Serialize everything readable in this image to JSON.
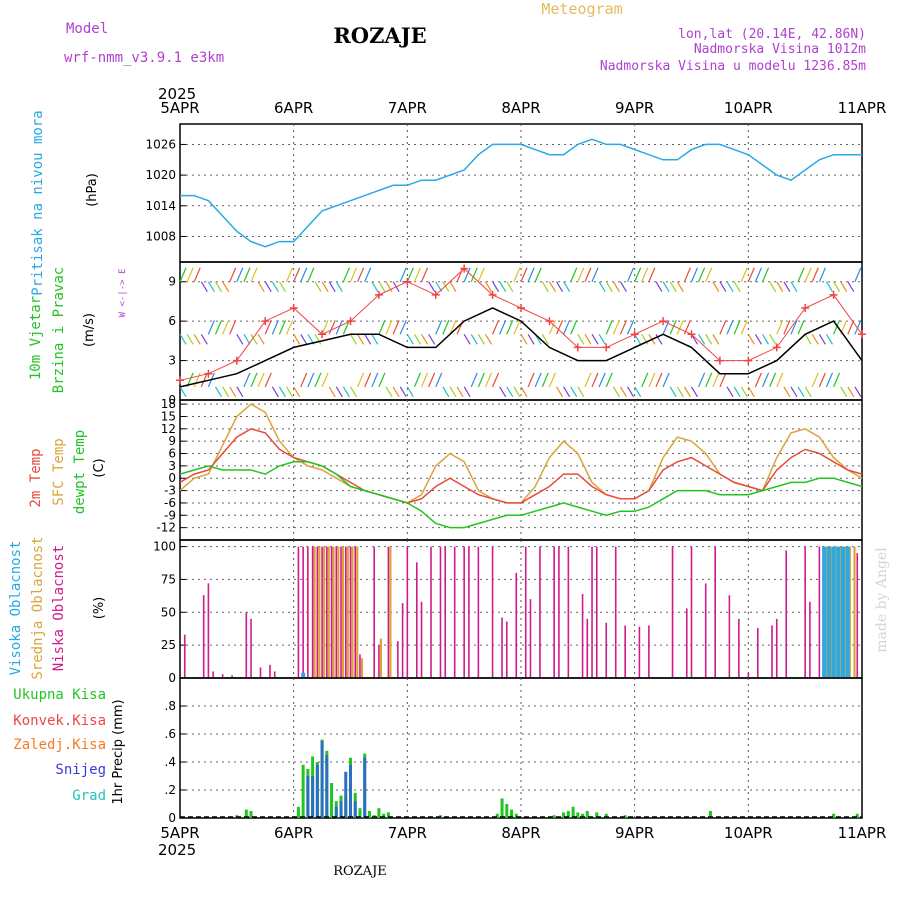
{
  "header": {
    "model_label": "Model",
    "model_name": "wrf-nmm_v3.9.1  e3km",
    "station_title": "ROZAJE",
    "product": "Meteogram",
    "lonlat": "lon,lat (20.14E, 42.86N)",
    "elevation": "Nadmorska Visina 1012m",
    "model_elevation": "Nadmorska Visina u modelu 1236.85m",
    "watermark": "made by Angel",
    "bottom_station": "ROZAJE"
  },
  "time_axis": {
    "year": "2025",
    "labels": [
      "5APR",
      "6APR",
      "7APR",
      "8APR",
      "9APR",
      "10APR",
      "11APR"
    ]
  },
  "colors": {
    "pressure": "#29a9e6",
    "temp2m": "#e84b3c",
    "sfc": "#dba43a",
    "dewpt": "#22c422",
    "wind_line": "#000000",
    "gust_marker": "#f04545",
    "cloud_high": "#29a9e6",
    "cloud_mid": "#dba43a",
    "cloud_low": "#d01a8e",
    "precip_total": "#22c422",
    "precip_conv": "#f04545",
    "precip_frozen": "#f37d23",
    "snow": "#3a3ad8",
    "graupel": "#22c4b8",
    "purple": "#b040d0",
    "orange": "#e8b860"
  },
  "chart_data": [
    {
      "id": "pressure",
      "type": "line",
      "ylabel": "Pritisak na nivou mora",
      "unit": "(hPa)",
      "ylim": [
        1003,
        1030
      ],
      "yticks": [
        1008,
        1014,
        1020,
        1026
      ],
      "x": [
        0,
        3,
        6,
        9,
        12,
        15,
        18,
        21,
        24,
        27,
        30,
        33,
        36,
        39,
        42,
        45,
        48,
        51,
        54,
        57,
        60,
        63,
        66,
        69,
        72,
        75,
        78,
        81,
        84,
        87,
        90,
        93,
        96,
        99,
        102,
        105,
        108,
        111,
        114,
        117,
        120,
        123,
        126,
        129,
        132,
        135,
        138,
        141,
        144
      ],
      "series": [
        {
          "name": "MSLP",
          "values": [
            1016,
            1016,
            1015,
            1012,
            1009,
            1007,
            1006,
            1007,
            1007,
            1010,
            1013,
            1014,
            1015,
            1016,
            1017,
            1018,
            1018,
            1019,
            1019,
            1020,
            1021,
            1024,
            1026,
            1026,
            1026,
            1025,
            1024,
            1024,
            1026,
            1027,
            1026,
            1026,
            1025,
            1024,
            1023,
            1023,
            1025,
            1026,
            1026,
            1025,
            1024,
            1022,
            1020,
            1019,
            1021,
            1023,
            1024,
            1024,
            1024
          ]
        }
      ]
    },
    {
      "id": "wind",
      "type": "line",
      "ylabel": "10m Vjetar Brzina i Pravac",
      "unit": "(m/s)",
      "direction_legend": "W <-|-> E",
      "ylim": [
        0,
        10.5
      ],
      "yticks": [
        0,
        3,
        6,
        9
      ],
      "x": [
        0,
        6,
        12,
        18,
        24,
        30,
        36,
        42,
        48,
        54,
        60,
        66,
        72,
        78,
        84,
        90,
        96,
        102,
        108,
        114,
        120,
        126,
        132,
        138,
        144
      ],
      "series": [
        {
          "name": "wind speed",
          "values": [
            1,
            1.5,
            2,
            3,
            4,
            4.5,
            5,
            5,
            4,
            4,
            6,
            7,
            6,
            4,
            3,
            3,
            4,
            5,
            4,
            2,
            2,
            3,
            5,
            6,
            3
          ]
        },
        {
          "name": "gust",
          "values": [
            1.5,
            2,
            3,
            6,
            7,
            5,
            6,
            8,
            9,
            8,
            10,
            8,
            7,
            6,
            4,
            4,
            5,
            6,
            5,
            3,
            3,
            4,
            7,
            8,
            5
          ]
        }
      ]
    },
    {
      "id": "temperature",
      "type": "line",
      "ylabel": "2m Temp / SFC Temp / dewpt Temp",
      "unit": "(C)",
      "ylim": [
        -15,
        19
      ],
      "yticks": [
        -12,
        -9,
        -6,
        -3,
        0,
        3,
        6,
        9,
        12,
        15,
        18
      ],
      "x": [
        0,
        3,
        6,
        9,
        12,
        15,
        18,
        21,
        24,
        27,
        30,
        33,
        36,
        39,
        42,
        45,
        48,
        51,
        54,
        57,
        60,
        63,
        66,
        69,
        72,
        75,
        78,
        81,
        84,
        87,
        90,
        93,
        96,
        99,
        102,
        105,
        108,
        111,
        114,
        117,
        120,
        123,
        126,
        129,
        132,
        135,
        138,
        141,
        144
      ],
      "series": [
        {
          "name": "2m Temp",
          "values": [
            -1,
            1,
            2,
            6,
            10,
            12,
            11,
            7,
            5,
            4,
            3,
            1,
            -1,
            -3,
            -4,
            -5,
            -6,
            -5,
            -2,
            0,
            -2,
            -4,
            -5,
            -6,
            -6,
            -4,
            -2,
            1,
            1,
            -2,
            -4,
            -5,
            -5,
            -3,
            2,
            4,
            5,
            3,
            1,
            -1,
            -2,
            -3,
            2,
            5,
            7,
            6,
            4,
            2,
            1
          ]
        },
        {
          "name": "SFC Temp",
          "values": [
            -3,
            0,
            1,
            8,
            15,
            18,
            16,
            9,
            5,
            3,
            2,
            0,
            -2,
            -3,
            -4,
            -5,
            -6,
            -4,
            3,
            6,
            4,
            -3,
            -5,
            -6,
            -6,
            -2,
            5,
            9,
            6,
            -1,
            -4,
            -5,
            -5,
            -3,
            5,
            10,
            9,
            6,
            1,
            -1,
            -2,
            -3,
            5,
            11,
            12,
            10,
            5,
            2,
            0
          ]
        },
        {
          "name": "dewpt Temp",
          "values": [
            1,
            2,
            3,
            2,
            2,
            2,
            1,
            3,
            4,
            4,
            3,
            1,
            -2,
            -3,
            -4,
            -5,
            -6,
            -8,
            -11,
            -12,
            -12,
            -11,
            -10,
            -9,
            -9,
            -8,
            -7,
            -6,
            -7,
            -8,
            -9,
            -8,
            -8,
            -7,
            -5,
            -3,
            -3,
            -3,
            -4,
            -4,
            -4,
            -3,
            -2,
            -1,
            -1,
            0,
            0,
            -1,
            -2
          ]
        }
      ]
    },
    {
      "id": "clouds",
      "type": "bar",
      "ylabel": "Visoka Oblacnost / Srednja Oblacnost / Niska Oblacnost",
      "unit": "(%)",
      "ylim": [
        0,
        105
      ],
      "yticks": [
        0,
        25,
        50,
        75,
        100
      ],
      "series": [
        {
          "name": "Niska",
          "x": [
            1,
            5,
            6,
            7,
            9,
            11,
            14,
            15,
            17,
            19,
            20,
            25,
            26,
            27,
            28,
            29,
            30,
            31,
            32,
            33,
            34,
            35,
            36,
            37,
            38,
            41,
            42,
            44,
            46,
            47,
            48,
            50,
            51,
            53,
            55,
            56,
            58,
            60,
            61,
            63,
            66,
            68,
            69,
            71,
            73,
            74,
            76,
            79,
            80,
            82,
            85,
            86,
            87,
            88,
            90,
            92,
            94,
            97,
            99,
            104,
            107,
            108,
            111,
            113,
            116,
            118,
            120,
            122,
            125,
            126,
            128,
            132,
            133,
            135,
            137,
            140,
            141,
            143
          ],
          "values": [
            33,
            63,
            72,
            5,
            3,
            2,
            50,
            45,
            8,
            10,
            5,
            100,
            100,
            100,
            100,
            100,
            100,
            100,
            100,
            100,
            100,
            100,
            100,
            100,
            18,
            100,
            25,
            100,
            28,
            57,
            100,
            88,
            58,
            100,
            100,
            100,
            100,
            100,
            100,
            100,
            100,
            46,
            43,
            80,
            100,
            60,
            100,
            100,
            100,
            100,
            64,
            45,
            100,
            100,
            42,
            100,
            40,
            39,
            40,
            100,
            53,
            100,
            72,
            100,
            63,
            45,
            4,
            38,
            40,
            45,
            97,
            100,
            58,
            100,
            97,
            65,
            80,
            95
          ]
        },
        {
          "name": "Srednja",
          "x": [
            28,
            29,
            30,
            31,
            32,
            33,
            34,
            35,
            36,
            37,
            38,
            42,
            44,
            136,
            137,
            138,
            139,
            140,
            141,
            142
          ],
          "values": [
            100,
            100,
            100,
            100,
            100,
            100,
            100,
            100,
            100,
            100,
            15,
            30,
            100,
            100,
            100,
            100,
            100,
            100,
            100,
            100
          ]
        },
        {
          "name": "Visoka",
          "x": [
            26,
            136,
            137,
            138,
            139,
            140,
            141
          ],
          "values": [
            4,
            100,
            100,
            100,
            100,
            100,
            100
          ]
        }
      ]
    },
    {
      "id": "precip",
      "type": "bar",
      "ylabel": "1hr Precip (mm)",
      "ylim": [
        0,
        1.0
      ],
      "yticks": [
        0,
        0.2,
        0.4,
        0.6,
        0.8
      ],
      "legend": [
        "Ukupna Kisa",
        "Konvek.Kisa",
        "Zaledj.Kisa",
        "Snijeg",
        "Grad"
      ],
      "series": [
        {
          "name": "Ukupna Kisa",
          "x": [
            12,
            14,
            15,
            25,
            26,
            27,
            28,
            29,
            30,
            31,
            32,
            33,
            34,
            35,
            36,
            37,
            38,
            39,
            40,
            41,
            42,
            43,
            44,
            55,
            67,
            68,
            69,
            70,
            71,
            79,
            81,
            82,
            83,
            84,
            85,
            86,
            88,
            90,
            94,
            112,
            138,
            143
          ],
          "values": [
            0.02,
            0.06,
            0.05,
            0.08,
            0.38,
            0.35,
            0.44,
            0.4,
            0.56,
            0.48,
            0.25,
            0.12,
            0.16,
            0.14,
            0.43,
            0.18,
            0.07,
            0.46,
            0.05,
            0.02,
            0.07,
            0.03,
            0.04,
            0.02,
            0.03,
            0.14,
            0.1,
            0.06,
            0.03,
            0.02,
            0.04,
            0.05,
            0.08,
            0.04,
            0.03,
            0.05,
            0.04,
            0.03,
            0.02,
            0.05,
            0.03,
            0.03
          ]
        },
        {
          "name": "Snijeg",
          "x": [
            27,
            28,
            29,
            30,
            31,
            33,
            34,
            35,
            36,
            37,
            39
          ],
          "values": [
            0.3,
            0.3,
            0.38,
            0.55,
            0.45,
            0.08,
            0.12,
            0.33,
            0.38,
            0.12,
            0.43
          ]
        }
      ]
    }
  ]
}
